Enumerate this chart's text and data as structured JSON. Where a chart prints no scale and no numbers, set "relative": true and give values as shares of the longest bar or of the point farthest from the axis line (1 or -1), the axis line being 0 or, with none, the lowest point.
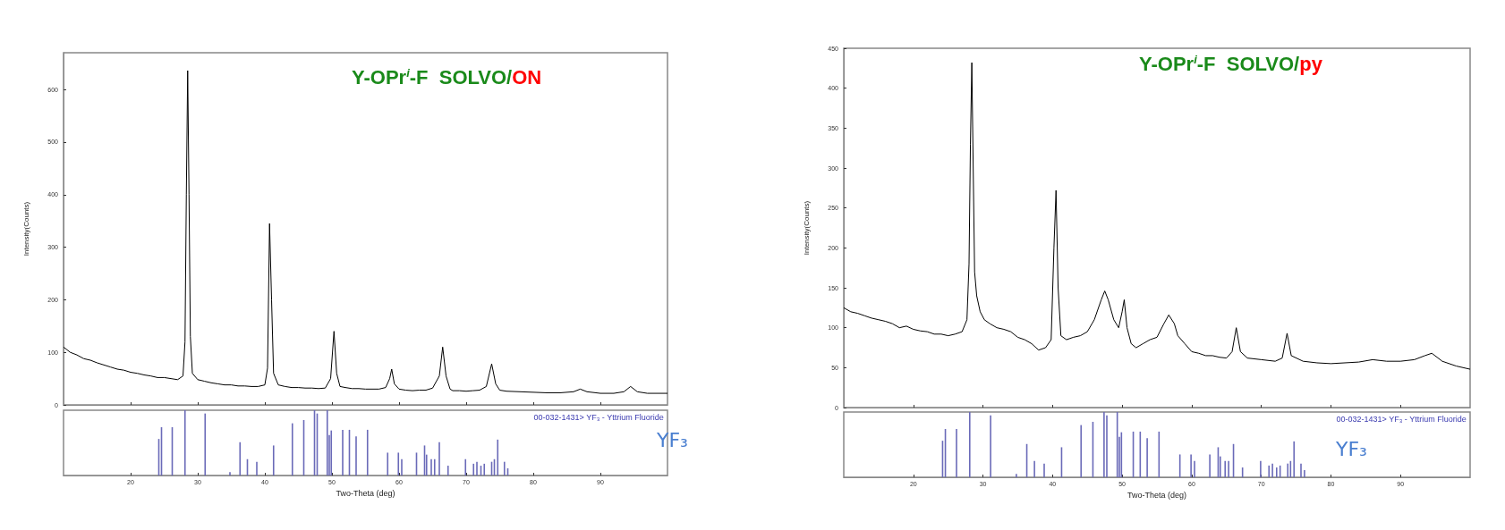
{
  "chart_data": [
    {
      "type": "line",
      "title": "Y-OPr$^{i}$-F  SOLVO/ON",
      "ylabel": "Intensity(Counts)",
      "xlim": [
        10,
        100
      ],
      "xticks": [
        20,
        30,
        40,
        50,
        60,
        70,
        80,
        90
      ],
      "ylim": [
        0,
        670
      ],
      "yticks": [
        0,
        100,
        200,
        300,
        400,
        500,
        600
      ],
      "tick_labels": "y",
      "marker": "none",
      "series": [
        {
          "color": "#000000",
          "x": [
            10,
            11,
            12,
            13,
            14,
            15,
            16,
            17,
            18,
            19,
            20,
            21,
            22,
            23,
            24,
            25,
            26,
            27,
            27.8,
            28.1,
            28.3,
            28.5,
            28.7,
            28.9,
            29.2,
            30,
            31,
            32,
            33,
            34,
            35,
            36,
            37,
            38,
            39,
            40,
            40.4,
            40.7,
            41.0,
            41.3,
            42,
            43,
            44,
            45,
            46,
            47,
            48,
            49,
            49.8,
            50.3,
            50.7,
            51.2,
            52,
            53,
            54,
            55,
            56,
            57,
            58,
            58.6,
            58.9,
            59.3,
            60,
            61,
            62,
            63,
            64,
            65,
            66,
            66.5,
            67,
            67.6,
            68,
            69,
            70,
            71,
            72,
            73,
            73.8,
            74.4,
            75,
            76,
            78,
            80,
            82,
            84,
            86,
            87,
            88,
            90,
            92,
            93.5,
            94.5,
            95.5,
            97,
            100
          ],
          "values": [
            110,
            100,
            95,
            88,
            85,
            80,
            76,
            72,
            68,
            66,
            62,
            60,
            57,
            55,
            52,
            52,
            50,
            48,
            55,
            120,
            400,
            636,
            400,
            130,
            60,
            48,
            45,
            42,
            40,
            38,
            38,
            36,
            36,
            35,
            35,
            38,
            70,
            345,
            200,
            60,
            38,
            35,
            33,
            33,
            32,
            32,
            31,
            32,
            50,
            140,
            60,
            35,
            33,
            31,
            31,
            30,
            30,
            30,
            33,
            50,
            68,
            40,
            30,
            28,
            27,
            28,
            28,
            32,
            55,
            110,
            55,
            30,
            27,
            27,
            26,
            27,
            28,
            35,
            78,
            40,
            28,
            26,
            25,
            24,
            23,
            23,
            25,
            30,
            25,
            22,
            22,
            25,
            35,
            25,
            22,
            22
          ]
        }
      ]
    },
    {
      "type": "bar",
      "relative": true,
      "xlabel": "Two-Theta (deg)",
      "xlim": [
        10,
        100
      ],
      "xticks": [
        20,
        30,
        40,
        50,
        60,
        70,
        80,
        90
      ],
      "tick_labels": "x",
      "annotations": [
        "00-032-1431> YF₃ - Yttrium Fluoride",
        "YF₃"
      ],
      "series": [
        {
          "color": "#6a6ab8",
          "x": [
            24.2,
            24.6,
            26.2,
            28.1,
            31.1,
            34.8,
            36.3,
            37.4,
            38.8,
            41.3,
            44.1,
            45.8,
            47.4,
            47.8,
            49.3,
            49.6,
            49.9,
            51.6,
            52.6,
            53.6,
            55.3,
            58.3,
            59.9,
            60.4,
            62.6,
            63.8,
            64.1,
            64.8,
            65.3,
            66.0,
            67.3,
            69.9,
            71.1,
            71.6,
            72.2,
            72.7,
            73.8,
            74.2,
            74.7,
            75.7,
            76.2
          ],
          "values": [
            0.56,
            0.74,
            0.74,
            1.0,
            0.95,
            0.05,
            0.51,
            0.25,
            0.21,
            0.46,
            0.8,
            0.85,
            1.0,
            0.95,
            1.0,
            0.62,
            0.69,
            0.7,
            0.7,
            0.6,
            0.7,
            0.35,
            0.35,
            0.25,
            0.35,
            0.46,
            0.32,
            0.25,
            0.25,
            0.51,
            0.15,
            0.25,
            0.18,
            0.21,
            0.15,
            0.18,
            0.21,
            0.25,
            0.55,
            0.21,
            0.11
          ]
        }
      ]
    },
    {
      "type": "line",
      "title": "Y-OPr$^{i}$-F  SOLVO/py",
      "ylabel": "Intensity(Counts)",
      "xlim": [
        10,
        100
      ],
      "xticks": [
        20,
        30,
        40,
        50,
        60,
        70,
        80,
        90
      ],
      "ylim": [
        0,
        450
      ],
      "yticks": [
        0,
        50,
        100,
        150,
        200,
        250,
        300,
        350,
        400,
        450
      ],
      "tick_labels": "y",
      "marker": "none",
      "series": [
        {
          "color": "#000000",
          "x": [
            10,
            11,
            12,
            13,
            14,
            15,
            16,
            17,
            18,
            19,
            20,
            21,
            22,
            23,
            24,
            25,
            26,
            27,
            27.7,
            28.0,
            28.2,
            28.4,
            28.6,
            28.8,
            29.1,
            29.6,
            30.2,
            31,
            32,
            33,
            34,
            35,
            36,
            37,
            38,
            39,
            39.8,
            40.2,
            40.5,
            40.8,
            41.2,
            42,
            43,
            44,
            45,
            46,
            47,
            47.5,
            48,
            48.8,
            49.5,
            50.0,
            50.3,
            50.7,
            51.3,
            52,
            53,
            54,
            55,
            56,
            56.7,
            57.5,
            58,
            59,
            60,
            61,
            62,
            63,
            64,
            65,
            65.8,
            66.4,
            67,
            68,
            70,
            72,
            73,
            73.7,
            74.3,
            76,
            78,
            80,
            82,
            84,
            86,
            88,
            90,
            92,
            93.5,
            94.5,
            96,
            98,
            100
          ],
          "values": [
            125,
            120,
            118,
            115,
            112,
            110,
            108,
            105,
            100,
            102,
            98,
            96,
            95,
            92,
            92,
            90,
            92,
            95,
            110,
            180,
            330,
            432,
            300,
            170,
            140,
            120,
            110,
            105,
            100,
            98,
            95,
            88,
            85,
            80,
            72,
            75,
            85,
            200,
            272,
            150,
            90,
            85,
            88,
            90,
            95,
            110,
            135,
            146,
            135,
            110,
            100,
            120,
            135,
            100,
            80,
            75,
            80,
            85,
            88,
            105,
            116,
            105,
            90,
            80,
            70,
            68,
            65,
            65,
            63,
            62,
            70,
            100,
            70,
            62,
            60,
            58,
            62,
            93,
            65,
            58,
            56,
            55,
            56,
            57,
            60,
            58,
            58,
            60,
            65,
            68,
            58,
            52,
            48
          ]
        }
      ]
    },
    {
      "type": "bar",
      "relative": true,
      "xlabel": "Two-Theta (deg)",
      "xlim": [
        10,
        100
      ],
      "xticks": [
        20,
        30,
        40,
        50,
        60,
        70,
        80,
        90
      ],
      "tick_labels": "x",
      "annotations": [
        "00-032-1431> YF₃ - Yttrium Fluoride",
        "YF₃"
      ],
      "series": [
        {
          "color": "#6a6ab8",
          "x": [
            24.2,
            24.6,
            26.2,
            28.1,
            31.1,
            34.8,
            36.3,
            37.4,
            38.8,
            41.3,
            44.1,
            45.8,
            47.4,
            47.8,
            49.3,
            49.6,
            49.9,
            51.6,
            52.6,
            53.6,
            55.3,
            58.3,
            59.9,
            60.4,
            62.6,
            63.8,
            64.1,
            64.8,
            65.3,
            66.0,
            67.3,
            69.9,
            71.1,
            71.6,
            72.2,
            72.7,
            73.8,
            74.2,
            74.7,
            75.7,
            76.2
          ],
          "values": [
            0.56,
            0.74,
            0.74,
            1.0,
            0.95,
            0.05,
            0.51,
            0.25,
            0.21,
            0.46,
            0.8,
            0.85,
            1.0,
            0.95,
            1.0,
            0.62,
            0.69,
            0.7,
            0.7,
            0.6,
            0.7,
            0.35,
            0.35,
            0.25,
            0.35,
            0.46,
            0.32,
            0.25,
            0.25,
            0.51,
            0.15,
            0.25,
            0.18,
            0.21,
            0.15,
            0.18,
            0.21,
            0.25,
            0.55,
            0.21,
            0.11
          ]
        }
      ]
    }
  ]
}
